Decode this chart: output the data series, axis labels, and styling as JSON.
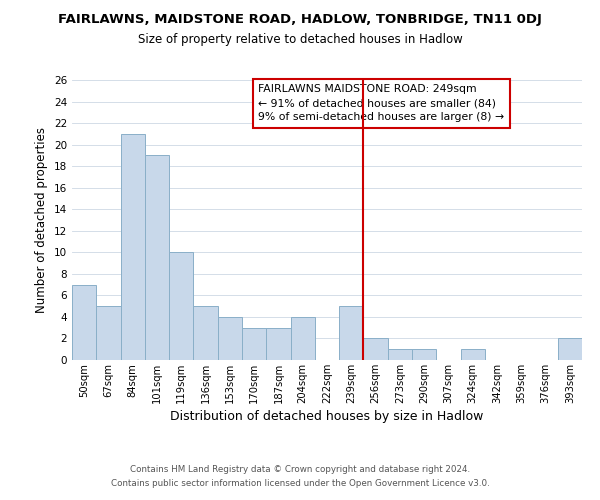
{
  "title": "FAIRLAWNS, MAIDSTONE ROAD, HADLOW, TONBRIDGE, TN11 0DJ",
  "subtitle": "Size of property relative to detached houses in Hadlow",
  "xlabel": "Distribution of detached houses by size in Hadlow",
  "ylabel": "Number of detached properties",
  "bar_color": "#c8d8ea",
  "bar_edge_color": "#8aafc8",
  "categories": [
    "50sqm",
    "67sqm",
    "84sqm",
    "101sqm",
    "119sqm",
    "136sqm",
    "153sqm",
    "170sqm",
    "187sqm",
    "204sqm",
    "222sqm",
    "239sqm",
    "256sqm",
    "273sqm",
    "290sqm",
    "307sqm",
    "324sqm",
    "342sqm",
    "359sqm",
    "376sqm",
    "393sqm"
  ],
  "values": [
    7,
    5,
    21,
    19,
    10,
    5,
    4,
    3,
    3,
    4,
    0,
    5,
    2,
    1,
    1,
    0,
    1,
    0,
    0,
    0,
    2
  ],
  "ylim": [
    0,
    26
  ],
  "yticks": [
    0,
    2,
    4,
    6,
    8,
    10,
    12,
    14,
    16,
    18,
    20,
    22,
    24,
    26
  ],
  "ref_line_color": "#cc0000",
  "ref_line_x": 11.5,
  "annotation_title": "FAIRLAWNS MAIDSTONE ROAD: 249sqm",
  "annotation_line1": "← 91% of detached houses are smaller (84)",
  "annotation_line2": "9% of semi-detached houses are larger (8) →",
  "annotation_box_color": "#ffffff",
  "annotation_box_edge": "#cc0000",
  "footer1": "Contains HM Land Registry data © Crown copyright and database right 2024.",
  "footer2": "Contains public sector information licensed under the Open Government Licence v3.0.",
  "background_color": "#ffffff",
  "grid_color": "#cdd8e4"
}
